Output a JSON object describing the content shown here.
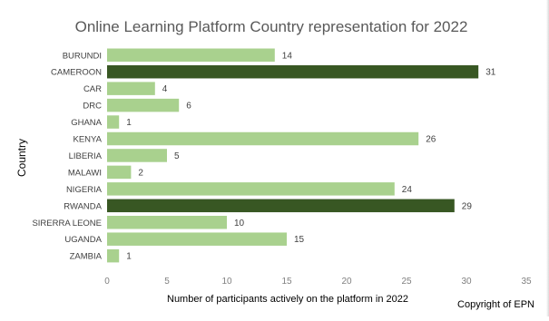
{
  "chart_data": {
    "type": "bar",
    "orientation": "horizontal",
    "title": "Online Learning Platform Country representation for 2022",
    "xlabel": "Number of participants actively on the platform in 2022",
    "ylabel": "Country",
    "categories": [
      "BURUNDI",
      "CAMEROON",
      "CAR",
      "DRC",
      "GHANA",
      "KENYA",
      "LIBERIA",
      "MALAWI",
      "NIGERIA",
      "RWANDA",
      "SIRERRA LEONE",
      "UGANDA",
      "ZAMBIA"
    ],
    "values": [
      14,
      31,
      4,
      6,
      1,
      26,
      5,
      2,
      24,
      29,
      10,
      15,
      1
    ],
    "highlighted": [
      "CAMEROON",
      "RWANDA"
    ],
    "xlim": [
      0,
      35
    ],
    "xticks": [
      0,
      5,
      10,
      15,
      20,
      25,
      30,
      35
    ],
    "grid": false,
    "legend": "none",
    "colors": {
      "bar": "#a9d18e",
      "highlight": "#385723",
      "text": "#404040",
      "title": "#595959",
      "axis_title": "#000000",
      "tick": "#7f7f7f"
    }
  },
  "footnote": "Copyright of EPN"
}
